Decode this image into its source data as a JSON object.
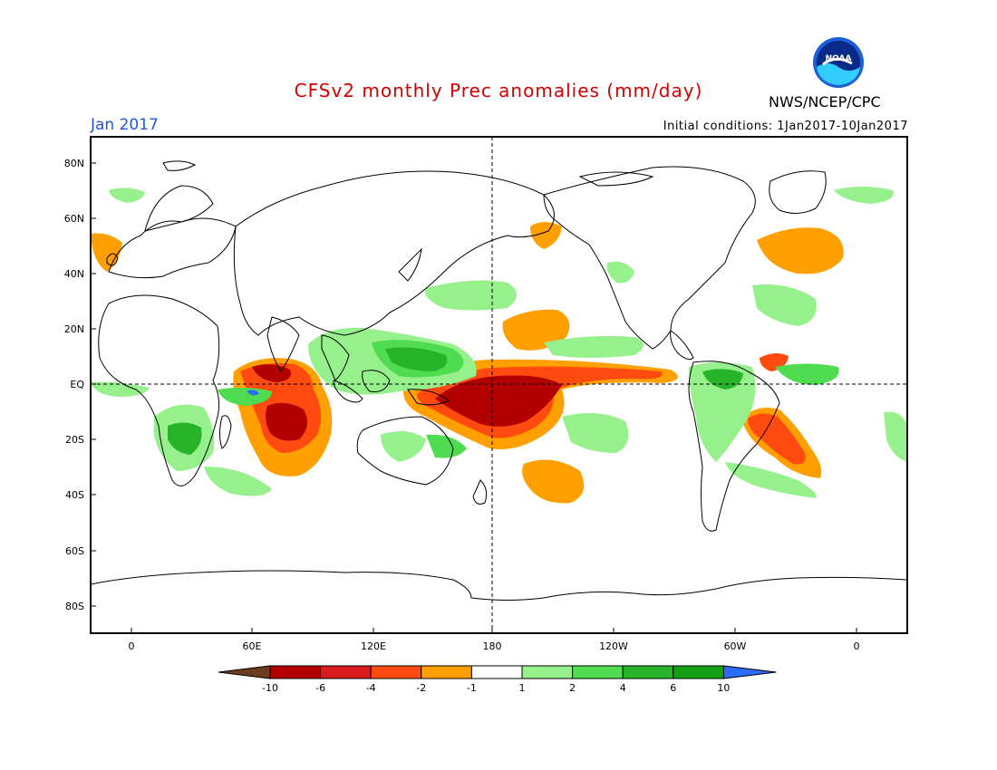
{
  "header": {
    "title": "CFSv2 monthly Prec anomalies (mm/day)",
    "period": "Jan 2017",
    "initial_conditions": "Initial conditions: 1Jan2017-10Jan2017",
    "agency": "NWS/NCEP/CPC",
    "logo_text": "NOAA"
  },
  "axes": {
    "lat_ticks": [
      "80N",
      "60N",
      "40N",
      "20N",
      "EQ",
      "20S",
      "40S",
      "60S",
      "80S"
    ],
    "lon_ticks": [
      "0",
      "60E",
      "120E",
      "180",
      "120W",
      "60W",
      "0"
    ]
  },
  "colorbar": {
    "labels": [
      "-10",
      "-6",
      "-4",
      "-2",
      "-1",
      "1",
      "2",
      "4",
      "6",
      "10"
    ],
    "colors": [
      "#6e3b1f",
      "#b20000",
      "#d81c1c",
      "#ff4a10",
      "#ffa000",
      "#ffffff",
      "#96f08c",
      "#50dc50",
      "#28b428",
      "#14a014",
      "#2c6bff"
    ]
  },
  "colors": {
    "dry_strong": "#b20000",
    "dry_moderate": "#ff4a10",
    "dry_weak": "#ffa000",
    "wet_weak": "#96f08c",
    "wet_moderate": "#50dc50",
    "wet_strong": "#28b428",
    "wet_extreme": "#2c6bff"
  }
}
